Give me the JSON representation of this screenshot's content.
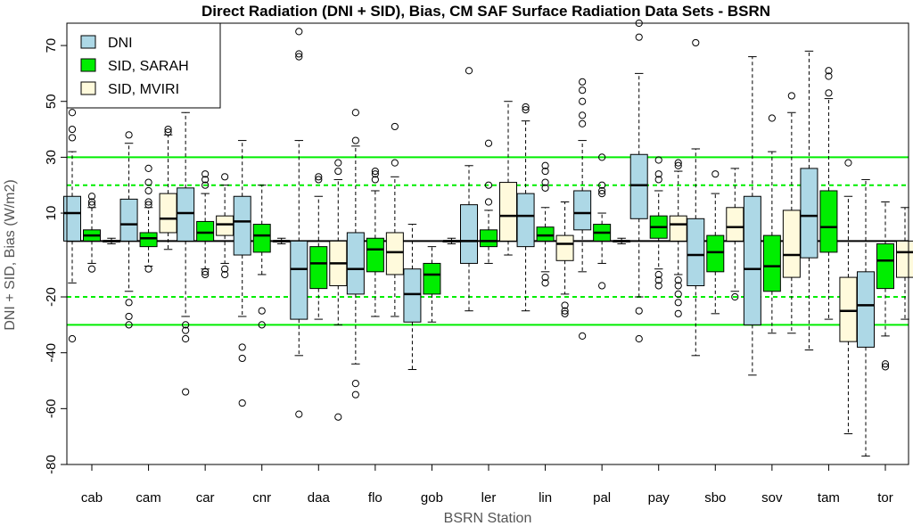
{
  "chart_data": {
    "type": "boxplot",
    "title": "Direct Radiation (DNI + SID), Bias, CM SAF Surface Radiation Data Sets - BSRN",
    "xlabel": "BSRN Station",
    "ylabel": "DNI + SID, Bias (W/m2)",
    "ylim": [
      -80,
      78
    ],
    "yticks": [
      70,
      50,
      30,
      10,
      -20,
      -40,
      -60,
      -80
    ],
    "ytick_labels": [
      "70",
      "50",
      "30",
      "10",
      "-20",
      "-40",
      "-60",
      "-80"
    ],
    "reference_lines": {
      "zero": 0,
      "solid_green": [
        30,
        -30
      ],
      "dashed_green": [
        20,
        -20
      ]
    },
    "legend_position": "top-left",
    "categories": [
      "cab",
      "cam",
      "car",
      "cnr",
      "daa",
      "flo",
      "gob",
      "ler",
      "lin",
      "pal",
      "pay",
      "sbo",
      "sov",
      "tam",
      "tor"
    ],
    "series": [
      {
        "name": "DNI",
        "color": "#add8e6",
        "boxes": [
          {
            "min": -15,
            "q1": 0,
            "median": 10,
            "q3": 16,
            "max": 32,
            "outliers": [
              -35,
              37,
              40,
              46
            ]
          },
          {
            "min": -18,
            "q1": 0,
            "median": 6,
            "q3": 15,
            "max": 35,
            "outliers": [
              -22,
              -27,
              -30,
              38
            ]
          },
          {
            "min": -27,
            "q1": 0,
            "median": 10,
            "q3": 19,
            "max": 46,
            "outliers": [
              -30,
              -32,
              -35,
              -54
            ]
          },
          {
            "min": -27,
            "q1": -5,
            "median": 7,
            "q3": 16,
            "max": 36,
            "outliers": [
              -38,
              -42,
              -58
            ]
          },
          {
            "min": -41,
            "q1": -28,
            "median": -10,
            "q3": 0,
            "max": 36,
            "outliers": [
              -62,
              66,
              67,
              75
            ]
          },
          {
            "min": -44,
            "q1": -19,
            "median": -10,
            "q3": 3,
            "max": 34,
            "outliers": [
              -51,
              -55,
              36,
              46
            ]
          },
          {
            "min": -46,
            "q1": -29,
            "median": -19,
            "q3": -10,
            "max": 6,
            "outliers": []
          },
          {
            "min": -25,
            "q1": -8,
            "median": 0,
            "q3": 13,
            "max": 27,
            "outliers": [
              61
            ]
          },
          {
            "min": -25,
            "q1": -2,
            "median": 9,
            "q3": 17,
            "max": 43,
            "outliers": [
              47,
              48
            ]
          },
          {
            "min": -11,
            "q1": 4,
            "median": 10,
            "q3": 18,
            "max": 36,
            "outliers": [
              -34,
              42,
              45,
              50,
              54,
              57
            ]
          },
          {
            "min": -20,
            "q1": 8,
            "median": 20,
            "q3": 31,
            "max": 60,
            "outliers": [
              -25,
              -35,
              73,
              78
            ]
          },
          {
            "min": -41,
            "q1": -16,
            "median": -5,
            "q3": 8,
            "max": 33,
            "outliers": [
              71
            ]
          },
          {
            "min": -48,
            "q1": -30,
            "median": -10,
            "q3": 16,
            "max": 66,
            "outliers": []
          },
          {
            "min": -39,
            "q1": -6,
            "median": 9,
            "q3": 26,
            "max": 68,
            "outliers": []
          },
          {
            "min": -77,
            "q1": -38,
            "median": -23,
            "q3": -11,
            "max": 22,
            "outliers": []
          }
        ]
      },
      {
        "name": "SID, SARAH",
        "color": "#00ee00",
        "boxes": [
          {
            "min": -8,
            "q1": 0,
            "median": 2,
            "q3": 4,
            "max": 12,
            "outliers": [
              -10,
              13,
              14,
              16
            ]
          },
          {
            "min": -9,
            "q1": -2,
            "median": 1,
            "q3": 3,
            "max": 12,
            "outliers": [
              -10,
              13,
              14,
              18,
              21,
              26
            ]
          },
          {
            "min": -10,
            "q1": 0,
            "median": 3,
            "q3": 7,
            "max": 17,
            "outliers": [
              -11,
              -12,
              20,
              22,
              24
            ]
          },
          {
            "min": -12,
            "q1": -4,
            "median": 2,
            "q3": 6,
            "max": 20,
            "outliers": [
              -25,
              -30
            ]
          },
          {
            "min": -28,
            "q1": -17,
            "median": -8,
            "q3": -2,
            "max": 16,
            "outliers": [
              22,
              23
            ]
          },
          {
            "min": -27,
            "q1": -11,
            "median": -3,
            "q3": 1,
            "max": 18,
            "outliers": [
              22,
              24,
              25
            ]
          },
          {
            "min": -29,
            "q1": -19,
            "median": -12,
            "q3": -8,
            "max": -2,
            "outliers": []
          },
          {
            "min": -8,
            "q1": -2,
            "median": 0,
            "q3": 4,
            "max": 11,
            "outliers": [
              14,
              20,
              35
            ]
          },
          {
            "min": -11,
            "q1": 0,
            "median": 2,
            "q3": 5,
            "max": 12,
            "outliers": [
              -13,
              -15,
              19,
              21,
              25,
              27
            ]
          },
          {
            "min": -8,
            "q1": 0,
            "median": 3,
            "q3": 6,
            "max": 10,
            "outliers": [
              -16,
              17,
              18,
              20,
              30
            ]
          },
          {
            "min": -10,
            "q1": 1,
            "median": 5,
            "q3": 9,
            "max": 18,
            "outliers": [
              -12,
              -14,
              -16,
              22,
              24,
              29
            ]
          },
          {
            "min": -26,
            "q1": -11,
            "median": -4,
            "q3": 2,
            "max": 17,
            "outliers": [
              24
            ]
          },
          {
            "min": -33,
            "q1": -18,
            "median": -9,
            "q3": 2,
            "max": 32,
            "outliers": [
              44
            ]
          },
          {
            "min": -28,
            "q1": -4,
            "median": 5,
            "q3": 18,
            "max": 51,
            "outliers": [
              53,
              59,
              61
            ]
          },
          {
            "min": -34,
            "q1": -17,
            "median": -7,
            "q3": -1,
            "max": 14,
            "outliers": [
              -44,
              -45
            ]
          }
        ]
      },
      {
        "name": "SID, MVIRI",
        "color": "#fffadc",
        "boxes": [
          {
            "min": -1,
            "q1": 0,
            "median": 0,
            "q3": 0,
            "max": 1,
            "outliers": []
          },
          {
            "min": -3,
            "q1": 3,
            "median": 8,
            "q3": 17,
            "max": 38,
            "outliers": [
              39,
              40
            ]
          },
          {
            "min": -8,
            "q1": 2,
            "median": 6,
            "q3": 9,
            "max": 20,
            "outliers": [
              -10,
              -12,
              23
            ]
          },
          {
            "min": -1,
            "q1": 0,
            "median": 0,
            "q3": 0,
            "max": 1,
            "outliers": []
          },
          {
            "min": -30,
            "q1": -16,
            "median": -8,
            "q3": 0,
            "max": 22,
            "outliers": [
              -63,
              25,
              28
            ]
          },
          {
            "min": -27,
            "q1": -12,
            "median": -4,
            "q3": 3,
            "max": 23,
            "outliers": [
              28,
              41
            ]
          },
          {
            "min": -1,
            "q1": 0,
            "median": 0,
            "q3": 0,
            "max": 1,
            "outliers": []
          },
          {
            "min": -5,
            "q1": 0,
            "median": 9,
            "q3": 21,
            "max": 50,
            "outliers": []
          },
          {
            "min": -19,
            "q1": -7,
            "median": -1,
            "q3": 2,
            "max": 14,
            "outliers": [
              -23,
              -25,
              -26
            ]
          },
          {
            "min": -1,
            "q1": 0,
            "median": 0,
            "q3": 0,
            "max": 1,
            "outliers": []
          },
          {
            "min": -12,
            "q1": 0,
            "median": 6,
            "q3": 9,
            "max": 25,
            "outliers": [
              -14,
              -16,
              -19,
              -22,
              -26,
              27,
              28
            ]
          },
          {
            "min": -18,
            "q1": 0,
            "median": 5,
            "q3": 12,
            "max": 26,
            "outliers": [
              -20
            ]
          },
          {
            "min": -33,
            "q1": -13,
            "median": -5,
            "q3": 11,
            "max": 46,
            "outliers": [
              52
            ]
          },
          {
            "min": -69,
            "q1": -36,
            "median": -25,
            "q3": -13,
            "max": 16,
            "outliers": [
              28
            ]
          },
          {
            "min": -28,
            "q1": -13,
            "median": -4,
            "q3": 0,
            "max": 12,
            "outliers": []
          }
        ]
      }
    ]
  }
}
